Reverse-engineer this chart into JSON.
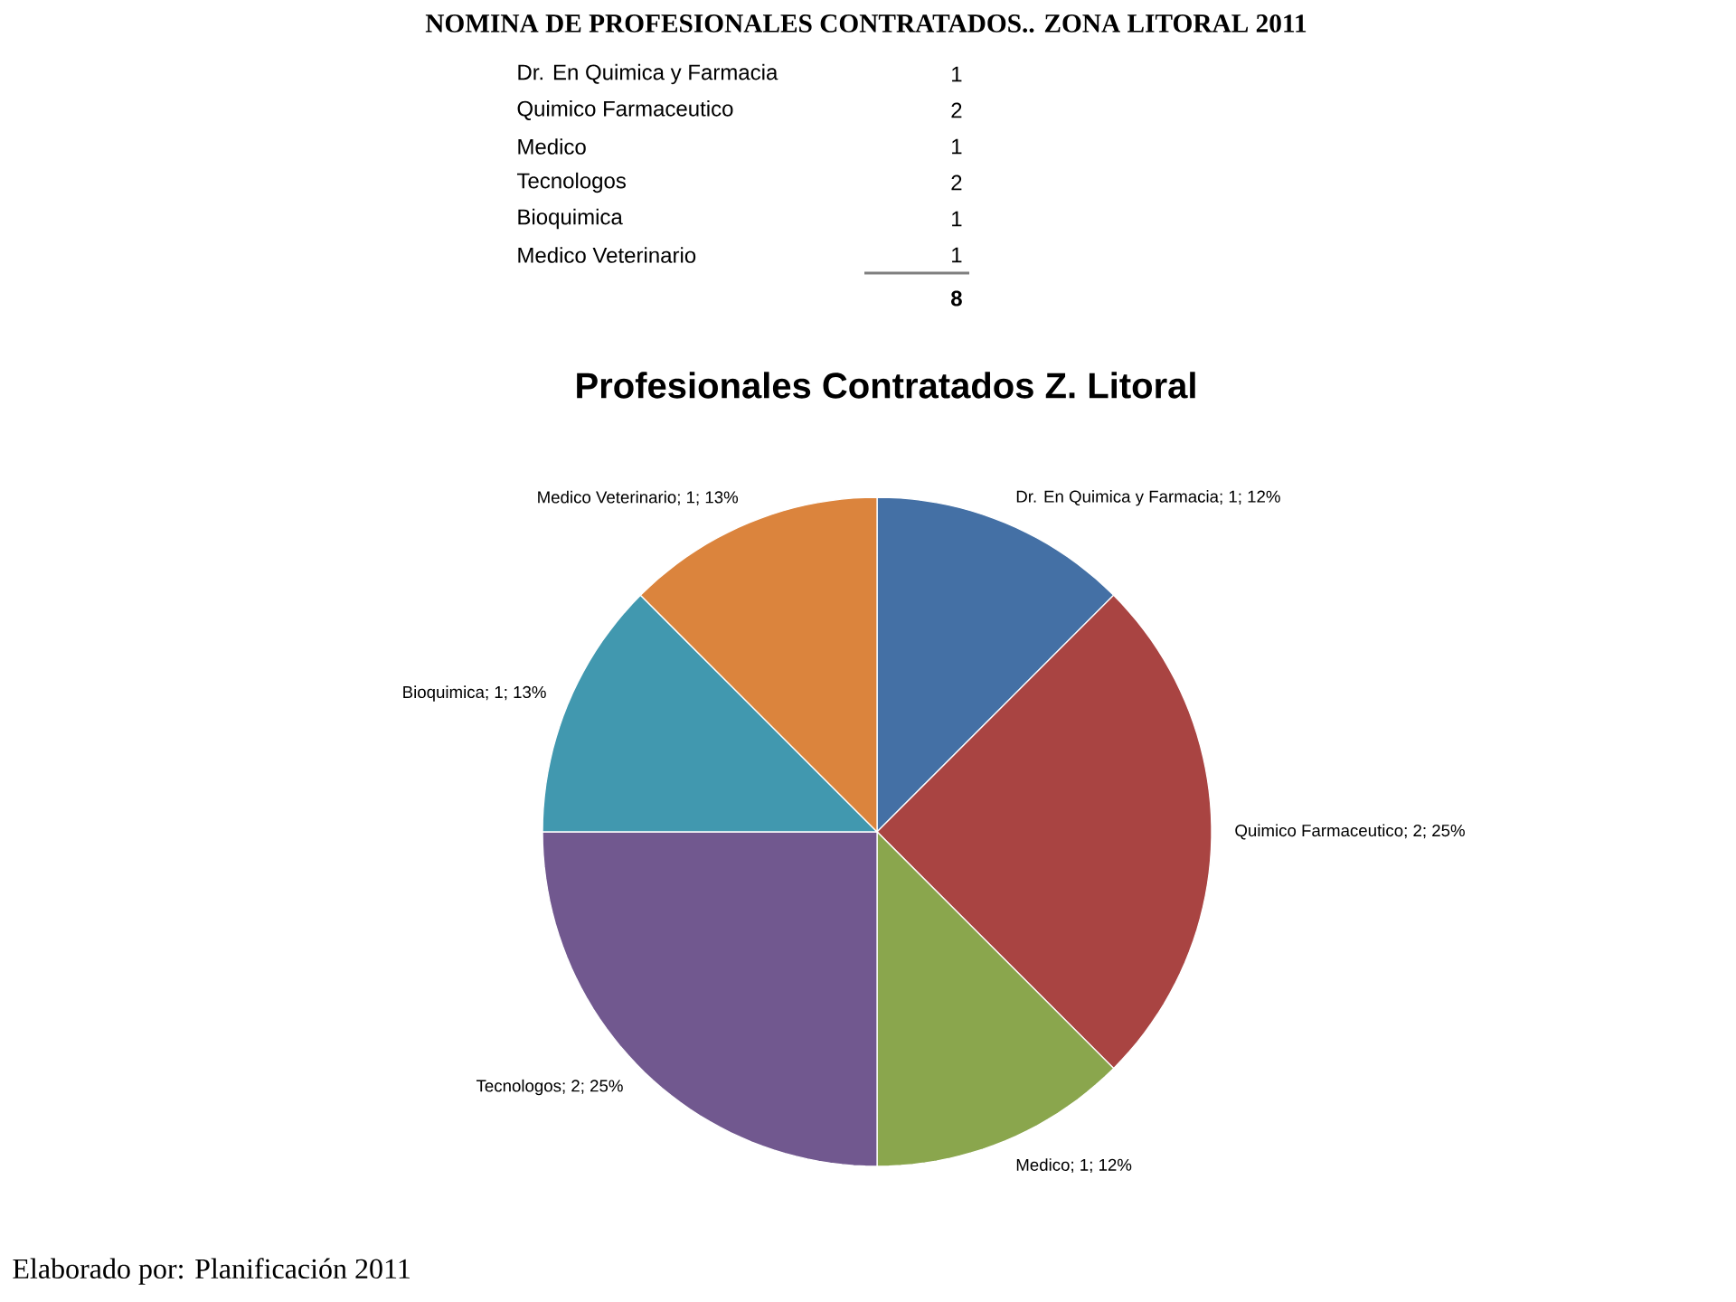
{
  "chart_data": {
    "type": "pie",
    "title": "NOMINA DE PROFESIONALES  CONTRATADOS..  ZONA LITORAL 2011",
    "subtitle": "Profesionales Contratados Z. Litoral",
    "categories": [
      "Dr. En Quimica y Farmacia",
      "Quimico Farmaceutico",
      "Medico",
      "Tecnologos",
      "Bioquimica",
      "Medico Veterinario"
    ],
    "values": [
      1,
      2,
      1,
      2,
      1,
      1
    ],
    "colors": [
      "#4470a5",
      "#a94442",
      "#8aa64d",
      "#71588f",
      "#4198af",
      "#db843d"
    ],
    "value_labels": [
      "; 1; 12%",
      "; 2; 25%",
      "; 1; 12%",
      "; 2; 25%",
      "; 1; 13%",
      "; 1; 13%"
    ],
    "totals": [
      "8"
    ],
    "annotations": [
      "Elaborado por: Planificación 2011",
      "Dr. En Quimica y Farmacia",
      "1",
      "Quimico Farmaceutico",
      "2",
      "Medico",
      "1",
      "Tecnologos",
      "2",
      "Bioquimica",
      "1",
      "Medico Veterinario",
      "1"
    ]
  }
}
